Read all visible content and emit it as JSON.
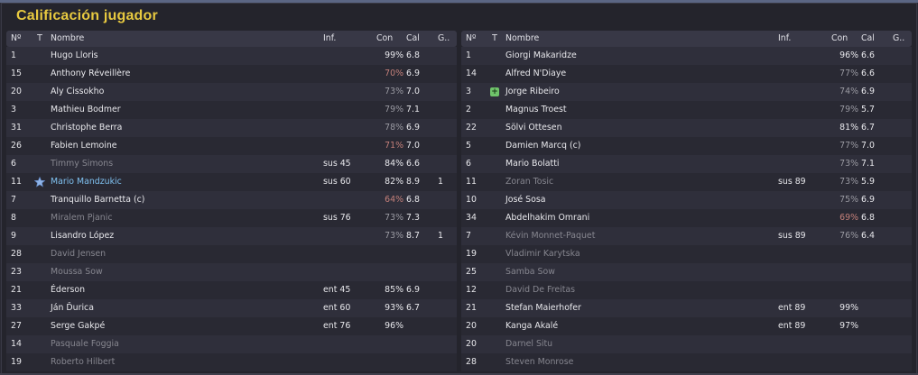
{
  "title": "Calificación jugador",
  "columns": {
    "num": "Nº",
    "t": "T",
    "name": "Nombre",
    "inf": "Inf.",
    "con": "Con",
    "cal": "Cal",
    "g": "G.."
  },
  "colors": {
    "title": "#e7c940",
    "panel_bg": "#24242c",
    "row_alt": "#2f2f3b",
    "highlight_player": "#7fc1f0",
    "condition_low": "#c4807a",
    "unused_player": "#86868f"
  },
  "left_team": [
    {
      "num": "1",
      "name": "Hugo Lloris",
      "inf": "",
      "con": "99%",
      "cal": "6.8",
      "g": "",
      "state": "played",
      "con_level": "high"
    },
    {
      "num": "15",
      "name": "Anthony Réveillère",
      "inf": "",
      "con": "70%",
      "cal": "6.9",
      "g": "",
      "state": "played",
      "con_level": "low"
    },
    {
      "num": "20",
      "name": "Aly Cissokho",
      "inf": "",
      "con": "73%",
      "cal": "7.0",
      "g": "",
      "state": "played",
      "con_level": "mid"
    },
    {
      "num": "3",
      "name": "Mathieu Bodmer",
      "inf": "",
      "con": "79%",
      "cal": "7.1",
      "g": "",
      "state": "played",
      "con_level": "mid"
    },
    {
      "num": "31",
      "name": "Christophe Berra",
      "inf": "",
      "con": "78%",
      "cal": "6.9",
      "g": "",
      "state": "played",
      "con_level": "mid"
    },
    {
      "num": "26",
      "name": "Fabien Lemoine",
      "inf": "",
      "con": "71%",
      "cal": "7.0",
      "g": "",
      "state": "played",
      "con_level": "low"
    },
    {
      "num": "6",
      "name": "Timmy Simons",
      "inf": "sus 45",
      "con": "84%",
      "cal": "6.6",
      "g": "",
      "state": "subbed",
      "con_level": "high"
    },
    {
      "num": "11",
      "name": "Mario Mandzukic",
      "inf": "sus 60",
      "con": "82%",
      "cal": "8.9",
      "g": "1",
      "state": "star",
      "con_level": "high"
    },
    {
      "num": "7",
      "name": "Tranquillo Barnetta (c)",
      "inf": "",
      "con": "64%",
      "cal": "6.8",
      "g": "",
      "state": "played",
      "con_level": "low"
    },
    {
      "num": "8",
      "name": "Miralem Pjanic",
      "inf": "sus 76",
      "con": "73%",
      "cal": "7.3",
      "g": "",
      "state": "subbed",
      "con_level": "mid"
    },
    {
      "num": "9",
      "name": "Lisandro López",
      "inf": "",
      "con": "73%",
      "cal": "8.7",
      "g": "1",
      "state": "played",
      "con_level": "mid"
    },
    {
      "num": "28",
      "name": "David Jensen",
      "inf": "",
      "con": "",
      "cal": "",
      "g": "",
      "state": "unused",
      "con_level": ""
    },
    {
      "num": "23",
      "name": "Moussa Sow",
      "inf": "",
      "con": "",
      "cal": "",
      "g": "",
      "state": "unused",
      "con_level": ""
    },
    {
      "num": "21",
      "name": "Éderson",
      "inf": "ent 45",
      "con": "85%",
      "cal": "6.9",
      "g": "",
      "state": "played",
      "con_level": "high"
    },
    {
      "num": "33",
      "name": "Ján Ďurica",
      "inf": "ent 60",
      "con": "93%",
      "cal": "6.7",
      "g": "",
      "state": "played",
      "con_level": "high"
    },
    {
      "num": "27",
      "name": "Serge Gakpé",
      "inf": "ent 76",
      "con": "96%",
      "cal": "",
      "g": "",
      "state": "played",
      "con_level": "high"
    },
    {
      "num": "14",
      "name": "Pasquale Foggia",
      "inf": "",
      "con": "",
      "cal": "",
      "g": "",
      "state": "unused",
      "con_level": ""
    },
    {
      "num": "19",
      "name": "Roberto Hilbert",
      "inf": "",
      "con": "",
      "cal": "",
      "g": "",
      "state": "unused",
      "con_level": ""
    }
  ],
  "right_team": [
    {
      "num": "1",
      "name": "Giorgi Makaridze",
      "inf": "",
      "con": "96%",
      "cal": "6.6",
      "g": "",
      "state": "played",
      "con_level": "high"
    },
    {
      "num": "14",
      "name": "Alfred N'Diaye",
      "inf": "",
      "con": "77%",
      "cal": "6.6",
      "g": "",
      "state": "played",
      "con_level": "mid"
    },
    {
      "num": "3",
      "name": "Jorge Ribeiro",
      "inf": "",
      "con": "74%",
      "cal": "6.9",
      "g": "",
      "state": "plus",
      "con_level": "mid"
    },
    {
      "num": "2",
      "name": "Magnus Troest",
      "inf": "",
      "con": "79%",
      "cal": "5.7",
      "g": "",
      "state": "played",
      "con_level": "mid"
    },
    {
      "num": "22",
      "name": "Sölvi Ottesen",
      "inf": "",
      "con": "81%",
      "cal": "6.7",
      "g": "",
      "state": "played",
      "con_level": "high"
    },
    {
      "num": "5",
      "name": "Damien Marcq (c)",
      "inf": "",
      "con": "77%",
      "cal": "7.0",
      "g": "",
      "state": "played",
      "con_level": "mid"
    },
    {
      "num": "6",
      "name": "Mario Bolatti",
      "inf": "",
      "con": "73%",
      "cal": "7.1",
      "g": "",
      "state": "played",
      "con_level": "mid"
    },
    {
      "num": "11",
      "name": "Zoran Tosic",
      "inf": "sus 89",
      "con": "73%",
      "cal": "5.9",
      "g": "",
      "state": "subbed",
      "con_level": "mid"
    },
    {
      "num": "10",
      "name": "José Sosa",
      "inf": "",
      "con": "75%",
      "cal": "6.9",
      "g": "",
      "state": "played",
      "con_level": "mid"
    },
    {
      "num": "34",
      "name": "Abdelhakim Omrani",
      "inf": "",
      "con": "69%",
      "cal": "6.8",
      "g": "",
      "state": "played",
      "con_level": "low"
    },
    {
      "num": "7",
      "name": "Kévin Monnet-Paquet",
      "inf": "sus 89",
      "con": "76%",
      "cal": "6.4",
      "g": "",
      "state": "subbed",
      "con_level": "mid"
    },
    {
      "num": "19",
      "name": "Vladimir Karytska",
      "inf": "",
      "con": "",
      "cal": "",
      "g": "",
      "state": "unused",
      "con_level": ""
    },
    {
      "num": "25",
      "name": "Samba Sow",
      "inf": "",
      "con": "",
      "cal": "",
      "g": "",
      "state": "unused",
      "con_level": ""
    },
    {
      "num": "12",
      "name": "David De Freitas",
      "inf": "",
      "con": "",
      "cal": "",
      "g": "",
      "state": "unused",
      "con_level": ""
    },
    {
      "num": "21",
      "name": "Stefan Maierhofer",
      "inf": "ent 89",
      "con": "99%",
      "cal": "",
      "g": "",
      "state": "played",
      "con_level": "high"
    },
    {
      "num": "20",
      "name": "Kanga Akalé",
      "inf": "ent 89",
      "con": "97%",
      "cal": "",
      "g": "",
      "state": "played",
      "con_level": "high"
    },
    {
      "num": "20",
      "name": "Darnel Situ",
      "inf": "",
      "con": "",
      "cal": "",
      "g": "",
      "state": "unused",
      "con_level": ""
    },
    {
      "num": "28",
      "name": "Steven Monrose",
      "inf": "",
      "con": "",
      "cal": "",
      "g": "",
      "state": "unused",
      "con_level": ""
    }
  ]
}
